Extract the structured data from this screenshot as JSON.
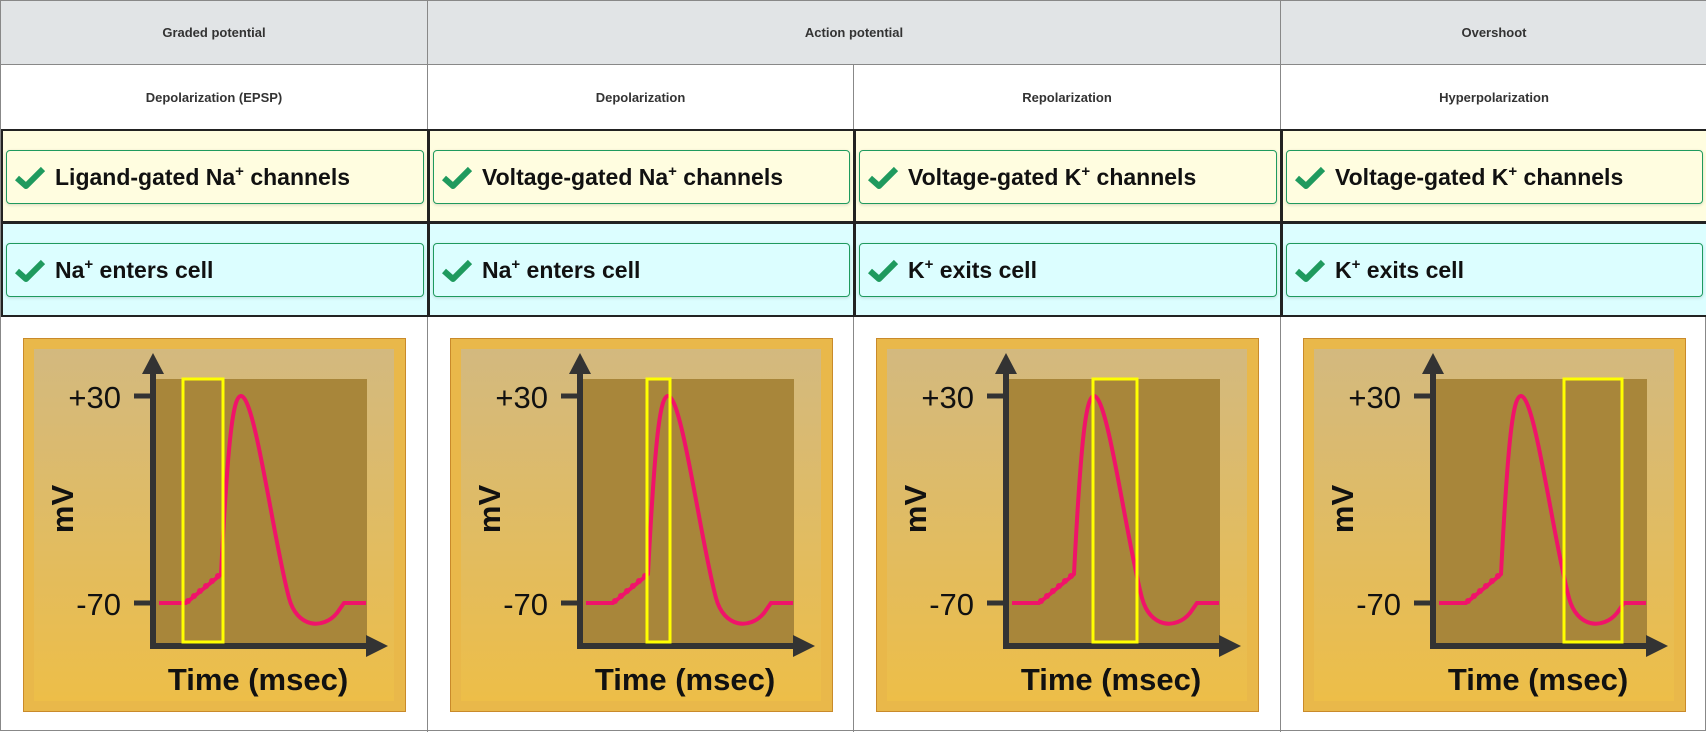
{
  "headers": [
    {
      "label": "Graded potential"
    },
    {
      "label": "Action potential"
    },
    {
      "label": "Overshoot"
    }
  ],
  "columns": [
    {
      "phase": "Depolarization (EPSP)",
      "channel": {
        "pre": "Ligand-gated Na",
        "sup": "+",
        "post": " channels"
      },
      "ion": {
        "pre": "Na",
        "sup": "+",
        "post": " enters cell"
      }
    },
    {
      "phase": "Depolarization",
      "channel": {
        "pre": "Voltage-gated Na",
        "sup": "+",
        "post": " channels"
      },
      "ion": {
        "pre": "Na",
        "sup": "+",
        "post": " enters cell"
      }
    },
    {
      "phase": "Repolarization",
      "channel": {
        "pre": "Voltage-gated K",
        "sup": "+",
        "post": " channels"
      },
      "ion": {
        "pre": "K",
        "sup": "+",
        "post": " exits cell"
      }
    },
    {
      "phase": "Hyperpolarization",
      "channel": {
        "pre": "Voltage-gated K",
        "sup": "+",
        "post": " channels"
      },
      "ion": {
        "pre": "K",
        "sup": "+",
        "post": " exits cell"
      }
    }
  ],
  "graph": {
    "y_top": "+30",
    "y_bottom": "-70",
    "y_label": "mV",
    "x_label": "Time (msec)"
  },
  "colors": {
    "check": "#1f9a5e",
    "curve": "#f0136a",
    "highlight": "#ffff00",
    "header_bg": "#e1e4e6",
    "row_channel_bg": "#fffde0",
    "row_ion_bg": "#dcfeff"
  },
  "icons": {
    "status": "checkmark-icon"
  }
}
